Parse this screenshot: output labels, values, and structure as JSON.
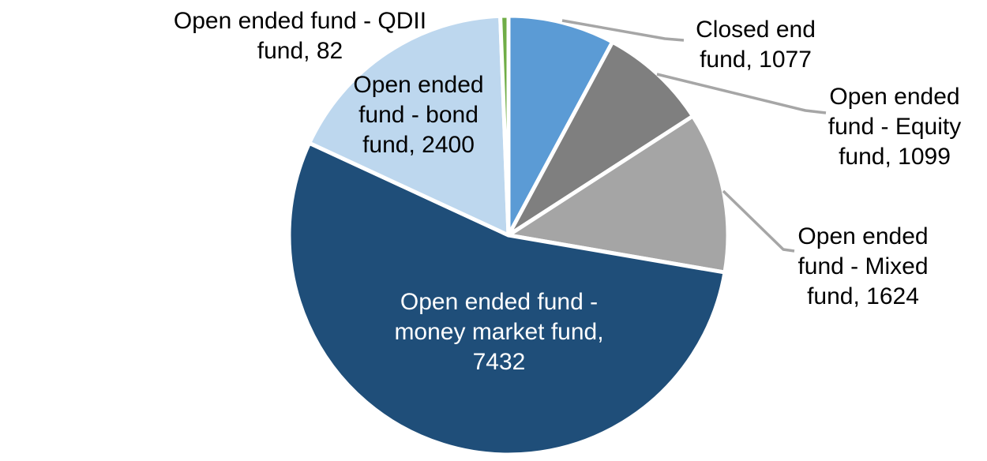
{
  "chart_data": {
    "type": "pie",
    "title": "",
    "legend": "none",
    "direction": "clockwise",
    "start_angle_deg": 0,
    "background_color": "#FFFFFF",
    "slice_border_color": "#FFFFFF",
    "leader_line_color": "#A6A6A6",
    "slices": [
      {
        "name": "Closed end fund",
        "value": 1077,
        "color": "#5B9BD5",
        "label": "Closed end\nfund, 1077",
        "label_color": "#000000",
        "label_placement": "outside",
        "leader_line": true
      },
      {
        "name": "Open ended fund - Equity fund",
        "value": 1099,
        "color": "#7F7F7F",
        "label": "Open ended\nfund - Equity\nfund, 1099",
        "label_color": "#000000",
        "label_placement": "outside",
        "leader_line": true
      },
      {
        "name": "Open ended fund - Mixed fund",
        "value": 1624,
        "color": "#A5A5A5",
        "label": "Open ended\nfund - Mixed\nfund, 1624",
        "label_color": "#000000",
        "label_placement": "outside",
        "leader_line": true
      },
      {
        "name": "Open ended fund - money market fund",
        "value": 7432,
        "color": "#1F4E79",
        "label": "Open ended fund -\nmoney market fund,\n7432",
        "label_color": "#FFFFFF",
        "label_placement": "inside",
        "leader_line": false
      },
      {
        "name": "Open ended fund - bond fund",
        "value": 2400,
        "color": "#BDD7EE",
        "label": "Open ended\nfund - bond\nfund, 2400",
        "label_color": "#000000",
        "label_placement": "inside",
        "leader_line": false
      },
      {
        "name": "Open ended fund - QDII fund",
        "value": 82,
        "color": "#70AD47",
        "label": "Open ended fund - QDII\nfund, 82",
        "label_color": "#000000",
        "label_placement": "outside",
        "leader_line": false
      }
    ]
  }
}
